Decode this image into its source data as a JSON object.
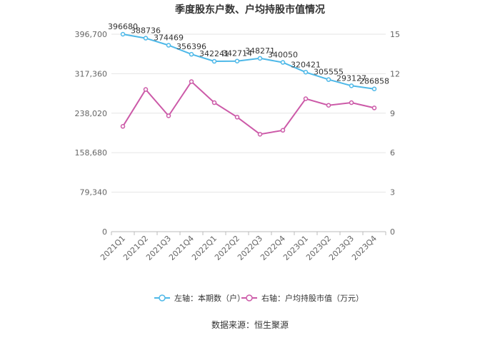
{
  "chart_data": {
    "type": "line",
    "title": "季度股东户数、户均持股市值情况",
    "source_label": "数据来源：恒生聚源",
    "categories": [
      "2021Q1",
      "2021Q2",
      "2021Q3",
      "2021Q4",
      "2022Q1",
      "2022Q2",
      "2022Q3",
      "2022Q4",
      "2023Q1",
      "2023Q2",
      "2023Q3",
      "2023Q4"
    ],
    "left_axis": {
      "ticks": [
        0,
        79340,
        158680,
        238020,
        317360,
        396700
      ],
      "tick_labels": [
        "0",
        "79,340",
        "158,680",
        "238,020",
        "317,360",
        "396,700"
      ],
      "ylim": [
        0,
        396700
      ]
    },
    "right_axis": {
      "ticks": [
        0,
        3,
        6,
        9,
        12,
        15
      ],
      "tick_labels": [
        "0",
        "3",
        "6",
        "9",
        "12",
        "15"
      ],
      "ylim": [
        0,
        15
      ]
    },
    "grid": true,
    "legend_position": "bottom",
    "series": [
      {
        "name": "左轴：本期数（户）",
        "axis": "left",
        "color": "#4db8e8",
        "values": [
          396680,
          388736,
          374469,
          356396,
          342241,
          342714,
          348271,
          340050,
          320421,
          305555,
          293127,
          286858
        ],
        "labels": [
          "396680",
          "388736",
          "374469",
          "356396",
          "342241",
          "342714",
          "348271",
          "340050",
          "320421",
          "305555",
          "293127",
          "286858"
        ]
      },
      {
        "name": "右轴：户均持股市值（万元）",
        "axis": "right",
        "color": "#cc5aa8",
        "values": [
          8.0,
          10.8,
          8.8,
          11.4,
          9.8,
          8.7,
          7.4,
          7.7,
          10.1,
          9.6,
          9.8,
          9.4
        ]
      }
    ]
  }
}
